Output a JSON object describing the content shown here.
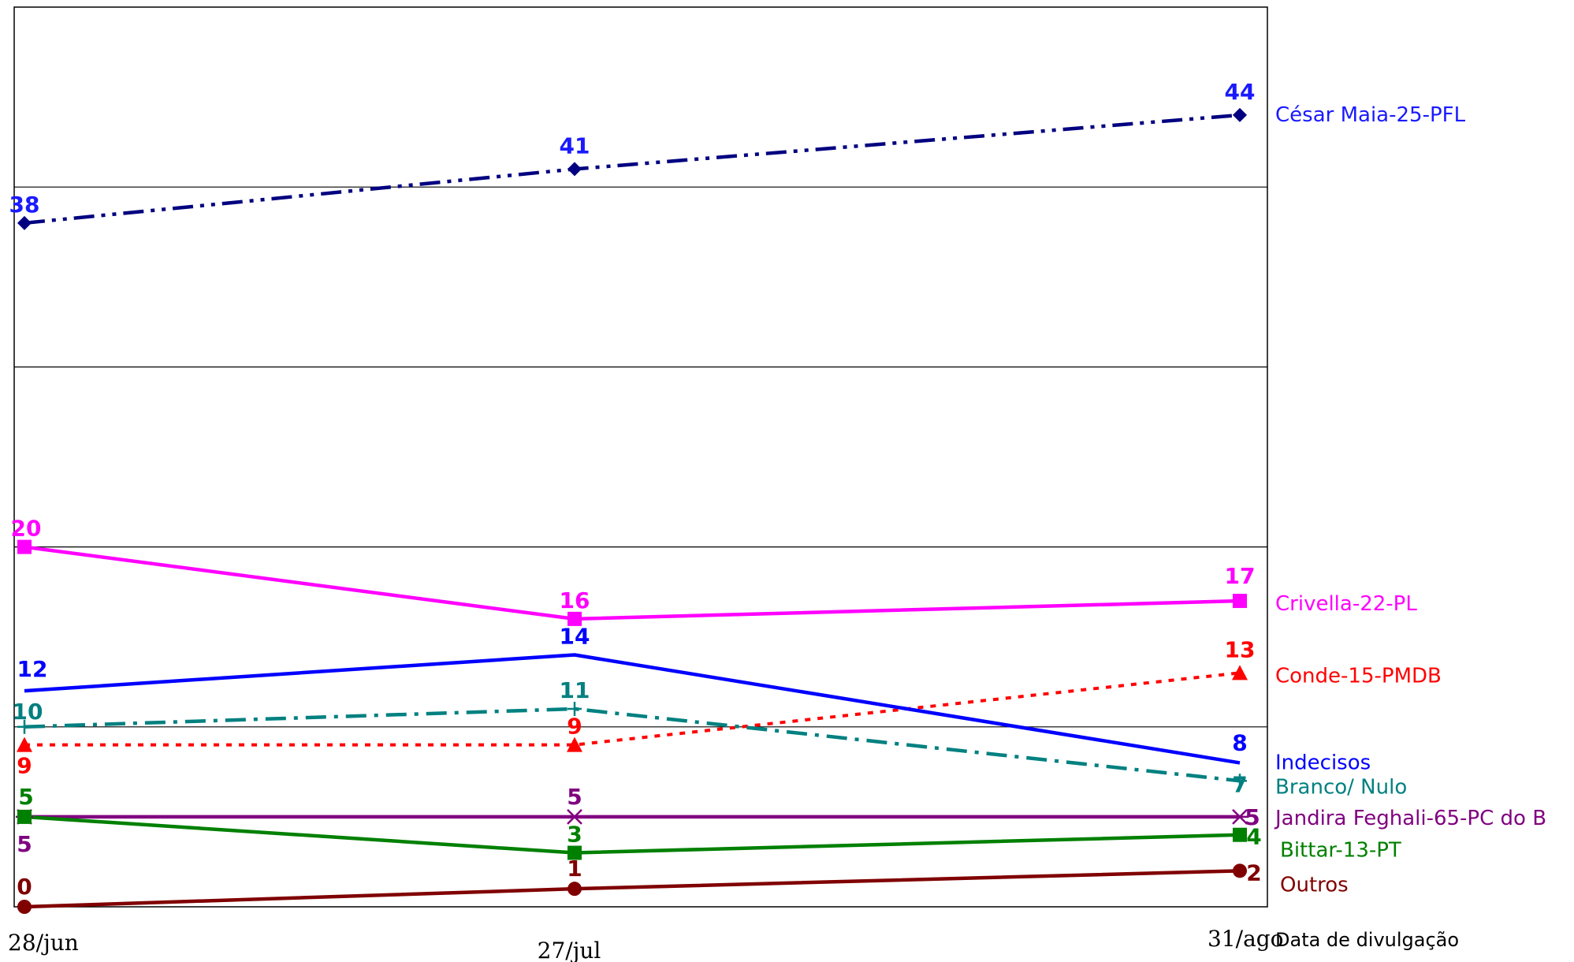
{
  "chart_data": {
    "type": "line",
    "title": "",
    "xlabel": "Data de divulgação",
    "ylabel": "",
    "ylim": [
      0,
      50
    ],
    "grid": true,
    "categories": [
      "28/jun",
      "27/jul",
      "31/ago"
    ],
    "series": [
      {
        "name": "César Maia-25-PFL",
        "values": [
          38,
          41,
          44
        ],
        "color": "#000080",
        "label_color": "#1a1aff",
        "dash": "dashdotdot",
        "marker": "diamond"
      },
      {
        "name": "Crivella-22-PL",
        "values": [
          20,
          16,
          17
        ],
        "color": "#ff00ff",
        "label_color": "#ff00ff",
        "dash": "solid",
        "marker": "square"
      },
      {
        "name": "Conde-15-PMDB",
        "values": [
          9,
          9,
          13
        ],
        "color": "#ff0000",
        "label_color": "#ff0000",
        "dash": "dotted",
        "marker": "triangle"
      },
      {
        "name": "Indecisos",
        "values": [
          12,
          14,
          8
        ],
        "color": "#0000ff",
        "label_color": "#0000ff",
        "dash": "solid",
        "marker": "none"
      },
      {
        "name": "Branco/ Nulo",
        "values": [
          10,
          11,
          7
        ],
        "color": "#008080",
        "label_color": "#008080",
        "dash": "dashdot",
        "marker": "plus"
      },
      {
        "name": "Jandira Feghali-65-PC do B",
        "values": [
          5,
          5,
          5
        ],
        "color": "#800080",
        "label_color": "#800080",
        "dash": "solid",
        "marker": "star"
      },
      {
        "name": "Bittar-13-PT",
        "values": [
          5,
          3,
          4
        ],
        "color": "#008000",
        "label_color": "#008000",
        "dash": "solid",
        "marker": "square"
      },
      {
        "name": "Outros",
        "values": [
          0,
          1,
          2
        ],
        "color": "#800000",
        "label_color": "#800000",
        "dash": "solid",
        "marker": "circle"
      }
    ]
  }
}
